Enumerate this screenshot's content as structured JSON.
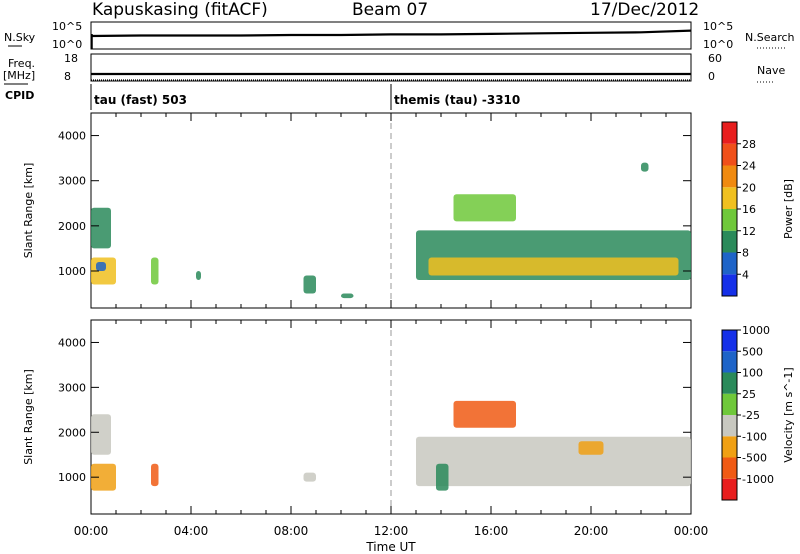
{
  "header": {
    "station": "Kapuskasing (fitACF)",
    "beam": "Beam 07",
    "date": "17/Dec/2012"
  },
  "panel_labels": {
    "nsky": "N.Sky",
    "nsearch": "N.Search",
    "freq": "Freq.",
    "freq_unit": "[MHz]",
    "nave": "Nave",
    "cpid": "CPID",
    "tick_1e5": "10^5",
    "tick_1e0": "10^0"
  },
  "cpid_segments": [
    {
      "label": "tau (fast) 503",
      "start_hour": 0
    },
    {
      "label": "themis (tau) -3310",
      "start_hour": 12
    }
  ],
  "colors": {
    "power": [
      "#1530e8",
      "#1e64c8",
      "#2a8a5a",
      "#6fc83a",
      "#f0c020",
      "#f08a10",
      "#f0501a",
      "#e81e1e"
    ],
    "velocity": [
      "#e81e1e",
      "#f05a14",
      "#f0a014",
      "#c8c8c0",
      "#6fc83a",
      "#2a8a5a",
      "#1e64c8",
      "#1530e8"
    ]
  },
  "chart_data": [
    {
      "name": "N.Sky / N.Search",
      "type": "line",
      "x": [
        0,
        2,
        4,
        6,
        8,
        10,
        12,
        14,
        16,
        18,
        20,
        22,
        24
      ],
      "series": [
        {
          "values": [
            2.4,
            2.5,
            2.5,
            2.5,
            2.6,
            2.6,
            2.7,
            2.7,
            2.8,
            2.9,
            3.0,
            3.1,
            3.4
          ]
        }
      ],
      "yticks_left": [
        "10^5",
        "10^0"
      ],
      "yticks_right": [
        "10^5",
        "10^0"
      ]
    },
    {
      "name": "Freq / Nave",
      "type": "line",
      "x": [
        0,
        2,
        4,
        6,
        8,
        10,
        12,
        14,
        16,
        18,
        20,
        22,
        24
      ],
      "series": [
        {
          "values": [
            10.6,
            10.6,
            10.6,
            10.6,
            10.6,
            10.6,
            10.6,
            10.6,
            10.6,
            10.6,
            10.6,
            10.6,
            10.6
          ]
        }
      ],
      "yticks_left": [
        "18",
        "8"
      ],
      "yticks_right": [
        "60",
        "0"
      ]
    },
    {
      "name": "Power",
      "type": "heatmap",
      "ylabel": "Slant Range [km]",
      "colorbar_label": "Power [dB]",
      "colorbar_ticks": [
        "4",
        "8",
        "12",
        "16",
        "20",
        "24",
        "28"
      ],
      "yticks": [
        "1000",
        "2000",
        "3000",
        "4000"
      ],
      "ylim": [
        180,
        4500
      ],
      "xlim": [
        0,
        24
      ],
      "regions": [
        {
          "t": [
            0,
            0.8
          ],
          "r": [
            1500,
            2400
          ],
          "level": 2
        },
        {
          "t": [
            0,
            1.0
          ],
          "r": [
            700,
            1300
          ],
          "level": 4
        },
        {
          "t": [
            0.2,
            0.6
          ],
          "r": [
            1000,
            1200
          ],
          "level": 1
        },
        {
          "t": [
            2.4,
            2.7
          ],
          "r": [
            700,
            1300
          ],
          "level": 3
        },
        {
          "t": [
            4.2,
            4.4
          ],
          "r": [
            800,
            1000
          ],
          "level": 2
        },
        {
          "t": [
            8.5,
            9.0
          ],
          "r": [
            500,
            900
          ],
          "level": 2
        },
        {
          "t": [
            10.0,
            10.5
          ],
          "r": [
            400,
            500
          ],
          "level": 2
        },
        {
          "t": [
            13.0,
            24
          ],
          "r": [
            800,
            1900
          ],
          "level": 2
        },
        {
          "t": [
            13.5,
            23.5
          ],
          "r": [
            900,
            1300
          ],
          "level": 4
        },
        {
          "t": [
            14.5,
            17.0
          ],
          "r": [
            2100,
            2700
          ],
          "level": 3
        },
        {
          "t": [
            22.0,
            22.3
          ],
          "r": [
            3200,
            3400
          ],
          "level": 2
        }
      ]
    },
    {
      "name": "Velocity",
      "type": "heatmap",
      "ylabel": "Slant Range [km]",
      "colorbar_label": "Velocity [m s^-1]",
      "colorbar_ticks": [
        "-1000",
        "-500",
        "-100",
        "-25",
        "25",
        "100",
        "500",
        "1000"
      ],
      "yticks": [
        "1000",
        "2000",
        "3000",
        "4000"
      ],
      "ylim": [
        180,
        4500
      ],
      "xlim": [
        0,
        24
      ],
      "regions": [
        {
          "t": [
            0,
            0.8
          ],
          "r": [
            1500,
            2400
          ],
          "level": 3
        },
        {
          "t": [
            0,
            1.0
          ],
          "r": [
            700,
            1300
          ],
          "level": 2
        },
        {
          "t": [
            2.4,
            2.7
          ],
          "r": [
            800,
            1300
          ],
          "level": 1
        },
        {
          "t": [
            8.5,
            9.0
          ],
          "r": [
            900,
            1100
          ],
          "level": 3
        },
        {
          "t": [
            13.0,
            24
          ],
          "r": [
            800,
            1900
          ],
          "level": 3
        },
        {
          "t": [
            14.5,
            17.0
          ],
          "r": [
            2100,
            2700
          ],
          "level": 1
        },
        {
          "t": [
            19.5,
            20.5
          ],
          "r": [
            1500,
            1800
          ],
          "level": 2
        },
        {
          "t": [
            13.8,
            14.3
          ],
          "r": [
            700,
            1300
          ],
          "level": 5
        }
      ]
    }
  ],
  "x_axis": {
    "label": "Time UT",
    "ticks": [
      "00:00",
      "04:00",
      "08:00",
      "12:00",
      "16:00",
      "20:00",
      "00:00"
    ]
  }
}
